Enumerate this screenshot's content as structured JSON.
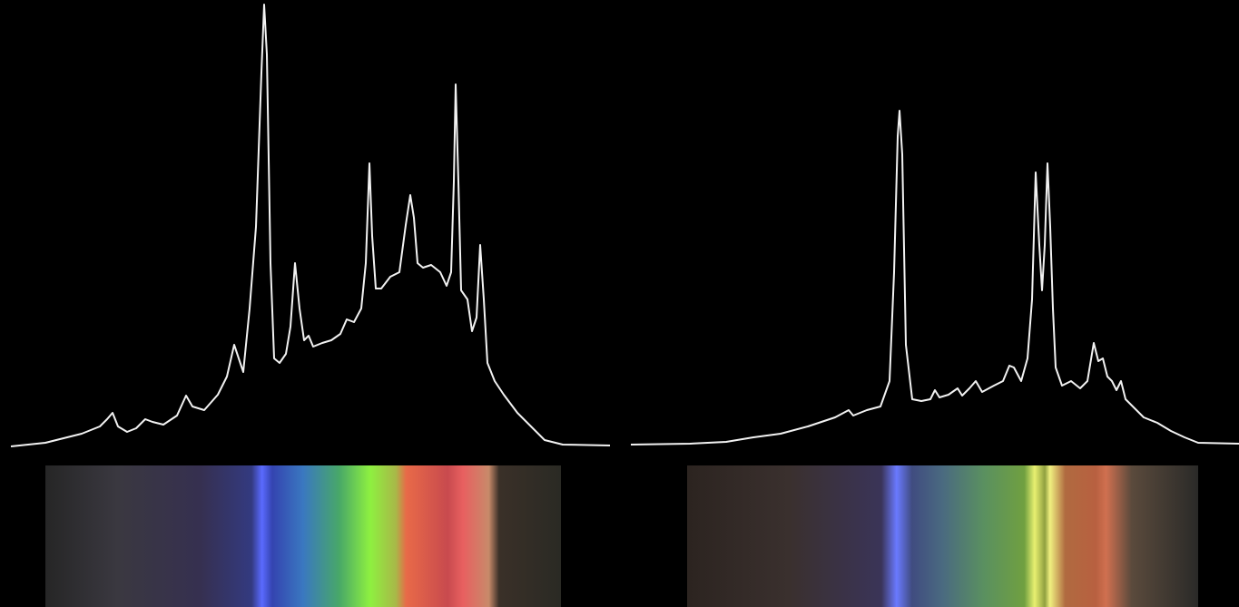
{
  "chart_data": [
    {
      "type": "line",
      "color": "#f2f2f2",
      "xlim": [
        0,
        660
      ],
      "ylim": [
        0,
        490
      ],
      "x": [
        0,
        38,
        78,
        98,
        106,
        112,
        118,
        128,
        138,
        148,
        156,
        168,
        183,
        193,
        200,
        213,
        228,
        238,
        246,
        251,
        256,
        263,
        270,
        276,
        279,
        282,
        286,
        290,
        296,
        303,
        308,
        313,
        318,
        323,
        328,
        333,
        343,
        353,
        363,
        370,
        378,
        386,
        391,
        395,
        398,
        402,
        408,
        418,
        428,
        435,
        440,
        444,
        448,
        454,
        463,
        473,
        480,
        485,
        488,
        490,
        493,
        496,
        503,
        508,
        513,
        517,
        521,
        525,
        533,
        543,
        558,
        573,
        588,
        608,
        660
      ],
      "values": [
        0,
        4,
        14,
        22,
        30,
        37,
        22,
        16,
        20,
        30,
        27,
        24,
        34,
        56,
        44,
        40,
        57,
        77,
        112,
        97,
        82,
        152,
        242,
        412,
        487,
        432,
        202,
        97,
        92,
        102,
        132,
        202,
        152,
        117,
        122,
        110,
        114,
        117,
        124,
        140,
        137,
        152,
        202,
        312,
        232,
        174,
        174,
        187,
        192,
        244,
        277,
        252,
        202,
        197,
        200,
        192,
        177,
        192,
        292,
        399,
        292,
        172,
        162,
        127,
        142,
        222,
        162,
        92,
        72,
        57,
        37,
        22,
        7,
        2,
        1
      ]
    },
    {
      "type": "line",
      "color": "#f2f2f2",
      "xlim": [
        0,
        670
      ],
      "ylim": [
        0,
        490
      ],
      "x": [
        0,
        65,
        105,
        135,
        165,
        195,
        210,
        225,
        240,
        245,
        260,
        275,
        285,
        290,
        294,
        296,
        299,
        303,
        310,
        320,
        330,
        335,
        340,
        350,
        360,
        365,
        373,
        380,
        387,
        400,
        410,
        417,
        422,
        430,
        437,
        442,
        446,
        450,
        453,
        456,
        459,
        462,
        465,
        468,
        475,
        485,
        495,
        503,
        510,
        515,
        520,
        525,
        530,
        535,
        540,
        545,
        555,
        565,
        580,
        595,
        610,
        625,
        670
      ],
      "values": [
        2,
        3,
        5,
        10,
        14,
        22,
        27,
        32,
        40,
        34,
        40,
        44,
        72,
        192,
        342,
        370,
        322,
        112,
        52,
        50,
        52,
        62,
        54,
        57,
        64,
        56,
        64,
        72,
        60,
        67,
        72,
        89,
        87,
        72,
        97,
        162,
        302,
        222,
        172,
        222,
        312,
        242,
        152,
        87,
        67,
        72,
        64,
        72,
        114,
        94,
        97,
        77,
        72,
        62,
        72,
        52,
        42,
        32,
        26,
        17,
        10,
        4,
        3
      ]
    }
  ]
}
